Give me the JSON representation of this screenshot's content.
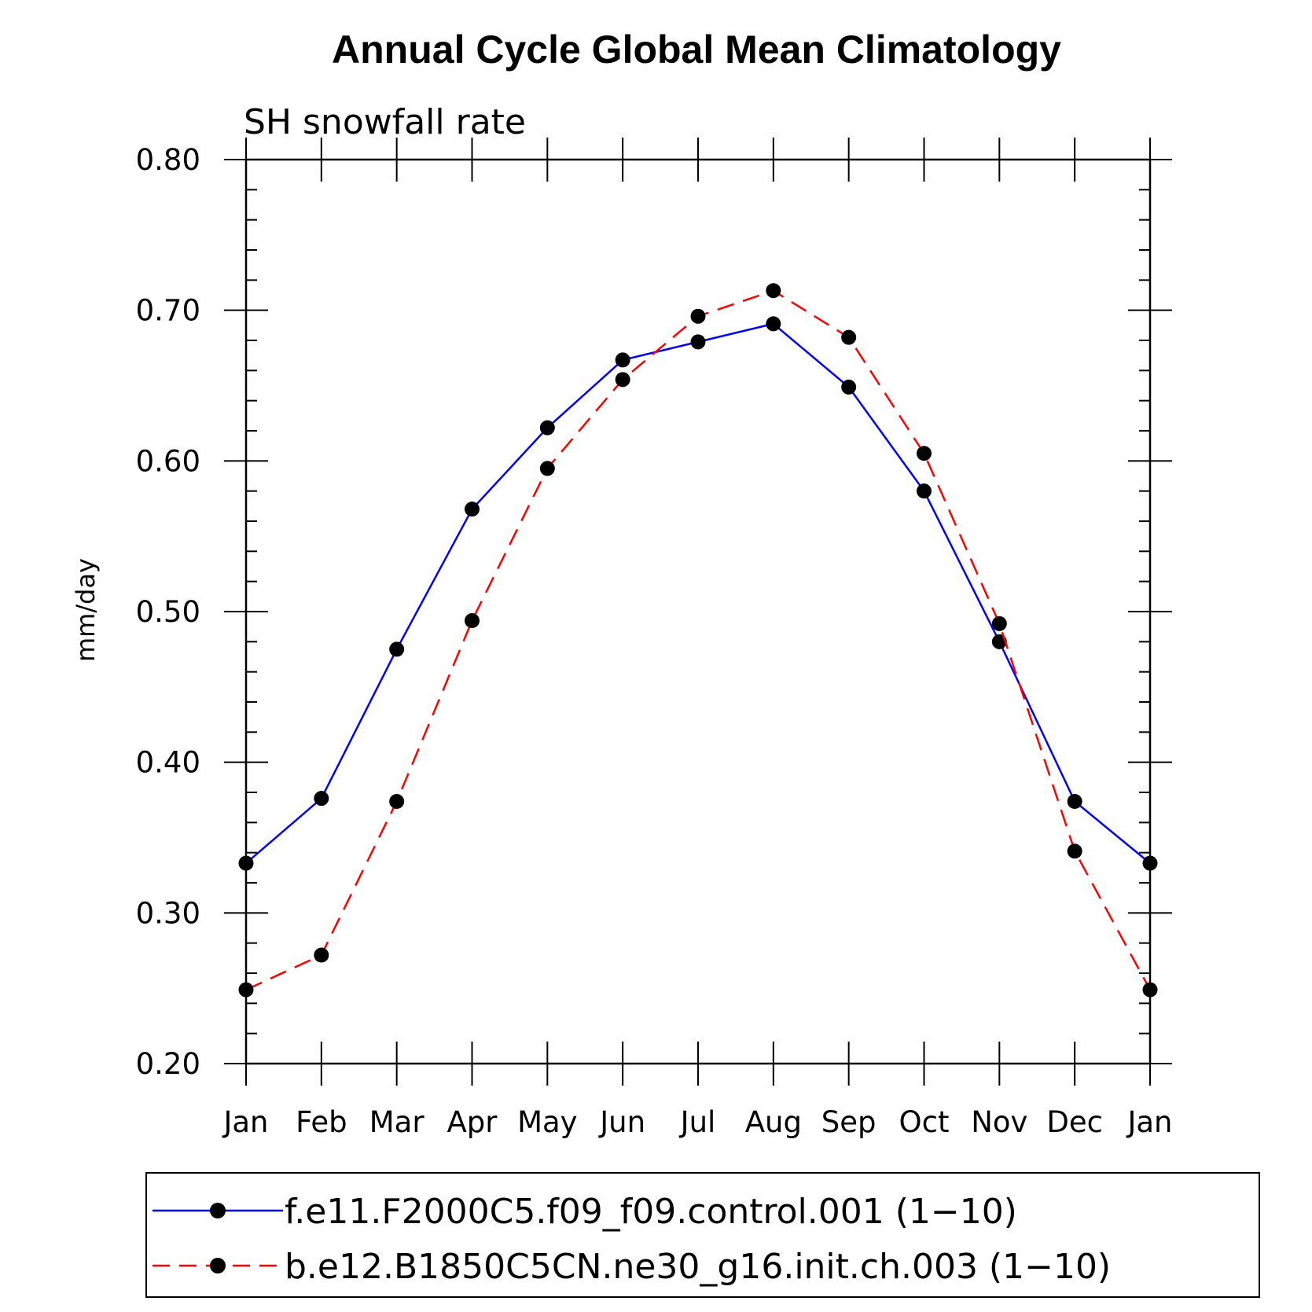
{
  "chart_data": {
    "type": "line",
    "title": "Annual Cycle Global Mean Climatology",
    "subtitle": "SH snowfall rate",
    "xlabel": "",
    "ylabel": "mm/day",
    "categories": [
      "Jan",
      "Feb",
      "Mar",
      "Apr",
      "May",
      "Jun",
      "Jul",
      "Aug",
      "Sep",
      "Oct",
      "Nov",
      "Dec",
      "Jan"
    ],
    "ylim": [
      0.2,
      0.8
    ],
    "yticks": [
      "0.20",
      "0.30",
      "0.40",
      "0.50",
      "0.60",
      "0.70",
      "0.80"
    ],
    "ytick_values": [
      0.2,
      0.3,
      0.4,
      0.5,
      0.6,
      0.7,
      0.8
    ],
    "grid": false,
    "legend_position": "bottom",
    "series": [
      {
        "name": "f.e11.F2000C5.f09_f09.control.001 (1−10)",
        "color": "#0000ff",
        "dash": "solid",
        "values": [
          0.333,
          0.376,
          0.475,
          0.568,
          0.622,
          0.667,
          0.679,
          0.691,
          0.649,
          0.58,
          0.48,
          0.374,
          0.333
        ]
      },
      {
        "name": "b.e12.B1850C5CN.ne30_g16.init.ch.003 (1−10)",
        "color": "#ff0000",
        "dash": "dashed",
        "values": [
          0.249,
          0.272,
          0.374,
          0.494,
          0.595,
          0.654,
          0.696,
          0.713,
          0.682,
          0.605,
          0.492,
          0.341,
          0.249
        ]
      }
    ]
  }
}
